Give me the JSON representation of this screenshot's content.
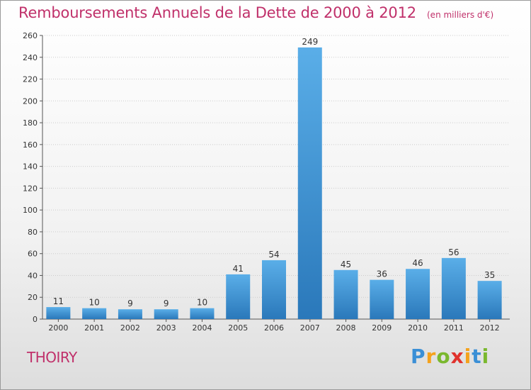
{
  "title": "Remboursements Annuels de la Dette de 2000 à 2012",
  "subtitle": "(en milliers d'€)",
  "commune": "THOIRY",
  "logo": {
    "text": "Proxiti",
    "letters": [
      {
        "char": "P",
        "color": "#3a8fd6"
      },
      {
        "char": "r",
        "color": "#f4a21c"
      },
      {
        "char": "o",
        "color": "#7ab82e"
      },
      {
        "char": "x",
        "color": "#e0322d"
      },
      {
        "char": "i",
        "color": "#f4a21c"
      },
      {
        "char": "t",
        "color": "#3a8fd6"
      },
      {
        "char": "i",
        "color": "#7ab82e"
      }
    ]
  },
  "colors": {
    "bar_light": "#5aaee8",
    "bar_dark": "#2a78ba",
    "title": "#c0306a",
    "grid": "#cccccc",
    "text": "#333333"
  },
  "chart_data": {
    "type": "bar",
    "title": "Remboursements Annuels de la Dette de 2000 à 2012",
    "subtitle": "(en milliers d'€)",
    "categories": [
      "2000",
      "2001",
      "2002",
      "2003",
      "2004",
      "2005",
      "2006",
      "2007",
      "2008",
      "2009",
      "2010",
      "2011",
      "2012"
    ],
    "values": [
      11,
      10,
      9,
      9,
      10,
      41,
      54,
      249,
      45,
      36,
      46,
      56,
      35
    ],
    "data_labels": [
      "11",
      "10",
      "9",
      "9",
      "10",
      "41",
      "54",
      "249",
      "45",
      "36",
      "46",
      "56",
      "35"
    ],
    "ylim": [
      0,
      260
    ],
    "yticks": [
      0,
      20,
      40,
      60,
      80,
      100,
      120,
      140,
      160,
      180,
      200,
      220,
      240,
      260
    ],
    "ytick_labels": [
      "0",
      "20",
      "40",
      "60",
      "80",
      "100",
      "120",
      "140",
      "160",
      "180",
      "200",
      "220",
      "240",
      "260"
    ],
    "grid": true,
    "legend": "none",
    "xlabel": "",
    "ylabel": ""
  }
}
